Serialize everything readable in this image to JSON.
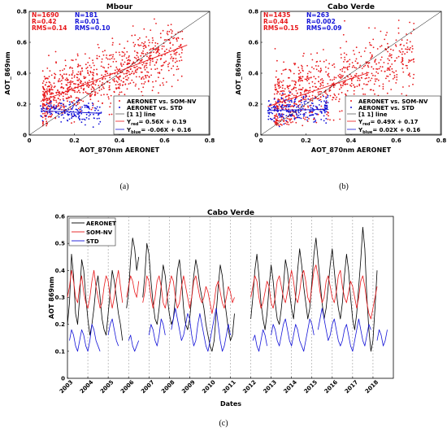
{
  "colors": {
    "red": "#e8181b",
    "blue": "#1414d8",
    "black": "#000000",
    "gray": "#888888"
  },
  "panel_a": {
    "title": "Mbour",
    "xlabel": "AOT_870nm AERONET",
    "ylabel": "AOT_869nm",
    "stats_red": [
      "N=1690",
      "R=0.42",
      "RMS=0.14"
    ],
    "stats_blue": [
      "N=181",
      "R=0.01",
      "RMS=0.10"
    ],
    "legend": [
      "AERONET vs. SOM-NV",
      "AERONET vs. STD",
      "[1 1] line",
      "Y",
      "red",
      "= 0.56X + 0.19",
      "Y",
      "blue",
      "= -0.06X + 0.16"
    ],
    "sublabel": "(a)"
  },
  "panel_b": {
    "title": "Cabo Verde",
    "xlabel": "AOT_870nm AERONET",
    "ylabel": "AOT_869nm",
    "stats_red": [
      "N=1435",
      "R=0.44",
      "RMS=0.15"
    ],
    "stats_blue": [
      "N=263",
      "R=0.002",
      "RMS=0.09"
    ],
    "legend": [
      "AERONET vs. SOM-NV",
      "AERONET vs. STD",
      "[1 1] line",
      "Y",
      "red",
      "= 0.49X + 0.17",
      "Y",
      "blue",
      "= 0.02X + 0.16"
    ],
    "sublabel": "(b)"
  },
  "panel_c": {
    "title": "Cabo Verde",
    "xlabel": "Dates",
    "ylabel": "AOT 869nm",
    "legend": [
      "AERONET",
      "SOM-NV",
      "STD"
    ],
    "sublabel": "(c)"
  },
  "chart_data": [
    {
      "type": "scatter",
      "title": "Mbour",
      "xlabel": "AOT_870nm AERONET",
      "ylabel": "AOT_869nm",
      "xlim": [
        0,
        0.8
      ],
      "ylim": [
        0,
        0.8
      ],
      "xticks": [
        "0",
        "0.2",
        "0.4",
        "0.6",
        "0.8"
      ],
      "yticks": [
        "0",
        "0.2",
        "0.4",
        "0.6",
        "0.8"
      ],
      "series": [
        {
          "name": "AERONET vs. SOM-NV",
          "color": "#e8181b",
          "n": 1690,
          "r": 0.42,
          "rms": 0.14,
          "fit": {
            "slope": 0.56,
            "intercept": 0.19,
            "x_range": [
              0.05,
              0.7
            ]
          }
        },
        {
          "name": "AERONET vs. STD",
          "color": "#1414d8",
          "n": 181,
          "r": 0.01,
          "rms": 0.1,
          "fit": {
            "slope": -0.06,
            "intercept": 0.16,
            "x_range": [
              0.05,
              0.32
            ]
          }
        }
      ],
      "reference_line": "[1 1] line",
      "legend_position": "bottom-right",
      "grid": false
    },
    {
      "type": "scatter",
      "title": "Cabo Verde",
      "xlabel": "AOT_870nm AERONET",
      "ylabel": "AOT_869nm",
      "xlim": [
        0,
        0.8
      ],
      "ylim": [
        0,
        0.8
      ],
      "xticks": [
        "0",
        "0.2",
        "0.4",
        "0.6",
        "0.8"
      ],
      "yticks": [
        "0",
        "0.2",
        "0.4",
        "0.6",
        "0.8"
      ],
      "series": [
        {
          "name": "AERONET vs. SOM-NV",
          "color": "#e8181b",
          "n": 1435,
          "r": 0.44,
          "rms": 0.15,
          "fit": {
            "slope": 0.49,
            "intercept": 0.17,
            "x_range": [
              0.03,
              0.48
            ]
          }
        },
        {
          "name": "AERONET vs. STD",
          "color": "#1414d8",
          "n": 263,
          "r": 0.002,
          "rms": 0.09,
          "fit": {
            "slope": 0.02,
            "intercept": 0.16,
            "x_range": [
              0.03,
              0.3
            ]
          }
        }
      ],
      "reference_line": "[1 1] line",
      "legend_position": "bottom-right",
      "grid": false
    },
    {
      "type": "line",
      "title": "Cabo Verde",
      "xlabel": "Dates",
      "ylabel": "AOT 869nm",
      "xlim": [
        2003,
        2019
      ],
      "ylim": [
        0,
        0.6
      ],
      "xticks": [
        "2003",
        "2004",
        "2005",
        "2006",
        "2007",
        "2008",
        "2009",
        "2010",
        "2011",
        "2012",
        "2013",
        "2014",
        "2015",
        "2016",
        "2017",
        "2018"
      ],
      "yticks": [
        "0",
        "0.1",
        "0.2",
        "0.3",
        "0.4",
        "0.5",
        "0.6"
      ],
      "vertical_dashed_gridlines_at_years": true,
      "legend_position": "top-left",
      "series": [
        {
          "name": "AERONET",
          "color": "#000000",
          "segments": [
            {
              "start": 2003.0,
              "step": 0.1,
              "values": [
                0.2,
                0.28,
                0.46,
                0.38,
                0.24,
                0.2,
                0.3,
                0.44,
                0.4,
                0.3,
                0.22,
                0.16,
                0.2,
                0.26,
                0.34,
                0.38,
                0.3,
                0.22,
                0.18,
                0.16,
                0.24,
                0.32,
                0.4,
                0.36,
                0.3,
                0.24,
                0.2,
                0.14
              ]
            },
            {
              "start": 2005.9,
              "step": 0.1,
              "values": [
                0.26,
                0.32,
                0.44,
                0.52,
                0.48,
                0.4,
                0.45
              ]
            },
            {
              "start": 2006.7,
              "step": 0.1,
              "values": [
                0.3,
                0.38,
                0.5,
                0.46,
                0.36,
                0.28,
                0.22,
                0.2,
                0.26,
                0.34,
                0.42,
                0.38,
                0.3,
                0.24,
                0.2,
                0.22,
                0.3,
                0.4,
                0.44,
                0.36,
                0.26,
                0.2,
                0.18,
                0.22,
                0.3,
                0.38,
                0.44,
                0.4,
                0.34,
                0.3,
                0.26,
                0.2,
                0.16,
                0.12,
                0.1,
                0.14,
                0.24,
                0.34,
                0.42,
                0.38,
                0.3,
                0.24,
                0.18,
                0.14,
                0.16,
                0.24
              ]
            },
            {
              "start": 2012.0,
              "step": 0.1,
              "values": [
                0.22,
                0.3,
                0.4,
                0.46,
                0.38,
                0.28,
                0.22,
                0.18,
                0.24,
                0.34,
                0.42,
                0.36,
                0.28,
                0.22,
                0.2,
                0.26,
                0.34,
                0.44,
                0.4,
                0.32,
                0.26,
                0.22,
                0.3,
                0.4,
                0.48,
                0.42,
                0.34,
                0.28,
                0.22,
                0.26,
                0.36,
                0.46,
                0.52,
                0.44,
                0.36,
                0.28,
                0.22,
                0.26,
                0.34,
                0.42,
                0.48,
                0.4,
                0.32,
                0.26,
                0.22,
                0.28,
                0.38,
                0.46,
                0.4,
                0.3,
                0.22,
                0.18,
                0.24,
                0.34,
                0.44,
                0.56,
                0.48,
                0.3,
                0.18,
                0.1,
                0.14,
                0.26,
                0.4
              ]
            }
          ]
        },
        {
          "name": "SOM-NV",
          "color": "#e8181b",
          "segments": [
            {
              "start": 2003.0,
              "step": 0.1,
              "values": [
                0.3,
                0.34,
                0.4,
                0.36,
                0.3,
                0.28,
                0.34,
                0.38,
                0.32,
                0.28,
                0.26,
                0.3,
                0.36,
                0.4,
                0.34,
                0.3,
                0.26,
                0.28,
                0.34,
                0.38,
                0.36,
                0.3,
                0.26,
                0.3,
                0.36,
                0.4,
                0.34,
                0.28
              ]
            },
            {
              "start": 2005.9,
              "step": 0.1,
              "values": [
                0.3,
                0.34,
                0.38,
                0.36,
                0.32,
                0.3,
                0.36
              ]
            },
            {
              "start": 2006.7,
              "step": 0.1,
              "values": [
                0.28,
                0.32,
                0.38,
                0.36,
                0.3,
                0.26,
                0.3,
                0.36,
                0.38,
                0.34,
                0.28,
                0.26,
                0.3,
                0.34,
                0.38,
                0.36,
                0.3,
                0.26,
                0.28,
                0.34,
                0.38,
                0.34,
                0.3,
                0.26,
                0.3,
                0.36,
                0.38,
                0.34,
                0.3,
                0.28,
                0.3,
                0.34,
                0.32,
                0.28,
                0.24,
                0.28,
                0.34,
                0.36,
                0.32,
                0.28,
                0.26,
                0.3,
                0.34,
                0.32,
                0.28,
                0.3
              ]
            },
            {
              "start": 2012.0,
              "step": 0.1,
              "values": [
                0.3,
                0.34,
                0.38,
                0.36,
                0.3,
                0.26,
                0.28,
                0.32,
                0.36,
                0.34,
                0.28,
                0.26,
                0.3,
                0.36,
                0.38,
                0.34,
                0.3,
                0.28,
                0.32,
                0.36,
                0.4,
                0.36,
                0.3,
                0.28,
                0.32,
                0.38,
                0.4,
                0.36,
                0.3,
                0.28,
                0.34,
                0.4,
                0.42,
                0.38,
                0.32,
                0.28,
                0.3,
                0.36,
                0.38,
                0.34,
                0.3,
                0.28,
                0.32,
                0.38,
                0.4,
                0.34,
                0.3,
                0.28,
                0.32,
                0.36,
                0.34,
                0.3,
                0.26,
                0.3,
                0.36,
                0.38,
                0.34,
                0.28,
                0.24,
                0.22,
                0.26,
                0.3,
                0.34
              ]
            }
          ]
        },
        {
          "name": "STD",
          "color": "#1414d8",
          "segments": [
            {
              "start": 2003.1,
              "step": 0.1,
              "values": [
                0.14,
                0.18,
                0.16,
                0.12,
                0.1,
                0.14,
                0.18,
                0.16,
                0.12,
                0.1,
                0.14,
                0.2,
                0.18,
                0.14,
                0.12,
                0.1
              ]
            },
            {
              "start": 2005.0,
              "step": 0.1,
              "values": [
                0.16,
                0.2,
                0.22,
                0.18,
                0.14,
                0.12
              ]
            },
            {
              "start": 2006.0,
              "step": 0.1,
              "values": [
                0.14,
                0.16,
                0.12,
                0.1,
                0.12,
                0.14
              ]
            },
            {
              "start": 2007.0,
              "step": 0.1,
              "values": [
                0.16,
                0.2,
                0.18,
                0.14,
                0.12,
                0.16,
                0.22,
                0.2,
                0.16
              ]
            },
            {
              "start": 2008.1,
              "step": 0.1,
              "values": [
                0.18,
                0.22,
                0.26,
                0.22,
                0.18,
                0.14,
                0.16,
                0.2,
                0.24,
                0.22,
                0.16,
                0.12,
                0.14,
                0.2,
                0.24,
                0.2,
                0.16,
                0.12,
                0.1,
                0.14,
                0.18,
                0.22,
                0.26,
                0.2,
                0.14,
                0.1,
                0.12,
                0.16,
                0.2,
                0.16
              ]
            },
            {
              "start": 2012.1,
              "step": 0.1,
              "values": [
                0.14,
                0.16,
                0.12,
                0.1,
                0.14,
                0.18,
                0.16,
                0.12
              ]
            },
            {
              "start": 2013.0,
              "step": 0.1,
              "values": [
                0.16,
                0.2,
                0.18,
                0.14,
                0.12,
                0.16,
                0.2,
                0.22,
                0.18,
                0.14,
                0.12,
                0.16,
                0.2,
                0.18,
                0.14,
                0.12,
                0.1,
                0.14,
                0.18,
                0.22,
                0.2,
                0.16
              ]
            },
            {
              "start": 2015.3,
              "step": 0.1,
              "values": [
                0.18,
                0.22,
                0.26,
                0.22,
                0.18,
                0.14,
                0.16,
                0.2,
                0.22,
                0.18,
                0.14,
                0.12,
                0.14,
                0.18,
                0.2,
                0.16,
                0.12,
                0.1,
                0.14,
                0.18,
                0.22,
                0.18,
                0.14,
                0.12,
                0.16,
                0.2,
                0.18
              ]
            },
            {
              "start": 2018.2,
              "step": 0.1,
              "values": [
                0.14,
                0.18,
                0.16,
                0.12,
                0.14,
                0.18
              ]
            }
          ]
        }
      ]
    }
  ]
}
